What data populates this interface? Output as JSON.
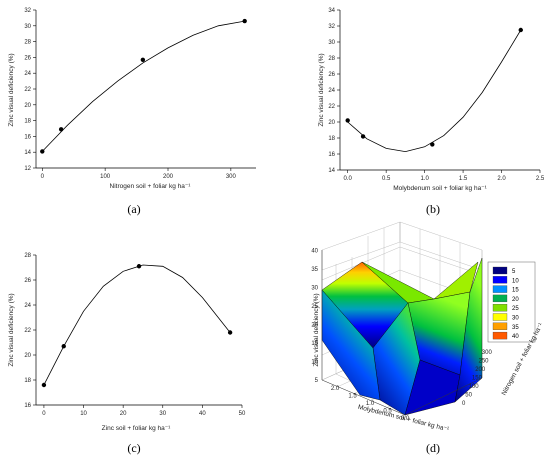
{
  "chart_data": [
    {
      "id": "a",
      "type": "scatter",
      "caption": "(a)",
      "xlabel": "Nitrogen soil + foliar kg ha⁻¹",
      "ylabel": "Zinc visual deficiency (%)",
      "xlim": [
        -10,
        340
      ],
      "ylim": [
        12,
        32
      ],
      "xticks": [
        0,
        100,
        200,
        300
      ],
      "yticks": [
        12,
        14,
        16,
        18,
        20,
        22,
        24,
        26,
        28,
        30,
        32
      ],
      "points": [
        {
          "x": 0,
          "y": 14.1
        },
        {
          "x": 30,
          "y": 16.9
        },
        {
          "x": 160,
          "y": 25.7
        },
        {
          "x": 322,
          "y": 30.6
        }
      ],
      "fit_curve": [
        [
          0,
          14.1
        ],
        [
          40,
          17.4
        ],
        [
          80,
          20.4
        ],
        [
          120,
          23.0
        ],
        [
          160,
          25.3
        ],
        [
          200,
          27.2
        ],
        [
          240,
          28.8
        ],
        [
          280,
          30.0
        ],
        [
          322,
          30.6
        ]
      ]
    },
    {
      "id": "b",
      "type": "scatter",
      "caption": "(b)",
      "xlabel": "Molybdenum  soil + foliar kg ha⁻¹",
      "ylabel": "Zinc visual deficiency (%)",
      "xlim": [
        -0.1,
        2.5
      ],
      "ylim": [
        14,
        34
      ],
      "xticks": [
        0.0,
        0.5,
        1.0,
        1.5,
        2.0,
        2.5
      ],
      "yticks": [
        14,
        16,
        18,
        20,
        22,
        24,
        26,
        28,
        30,
        32,
        34
      ],
      "points": [
        {
          "x": 0.0,
          "y": 20.2
        },
        {
          "x": 0.2,
          "y": 18.2
        },
        {
          "x": 1.1,
          "y": 17.2
        },
        {
          "x": 2.25,
          "y": 31.5
        }
      ],
      "fit_curve": [
        [
          0,
          20.0
        ],
        [
          0.25,
          17.9
        ],
        [
          0.5,
          16.7
        ],
        [
          0.75,
          16.3
        ],
        [
          1.0,
          16.9
        ],
        [
          1.25,
          18.3
        ],
        [
          1.5,
          20.6
        ],
        [
          1.75,
          23.7
        ],
        [
          2.0,
          27.5
        ],
        [
          2.25,
          31.5
        ]
      ]
    },
    {
      "id": "c",
      "type": "scatter",
      "caption": "(c)",
      "xlabel": "Zinc  soil + foliar kg ha⁻¹",
      "ylabel": "Zinc visual deficiency (%)",
      "xlim": [
        -2,
        50
      ],
      "ylim": [
        16,
        28
      ],
      "xticks": [
        0,
        10,
        20,
        30,
        40,
        50
      ],
      "yticks": [
        16,
        18,
        20,
        22,
        24,
        26,
        28
      ],
      "points": [
        {
          "x": 0,
          "y": 17.6
        },
        {
          "x": 5,
          "y": 20.7
        },
        {
          "x": 24,
          "y": 27.1
        },
        {
          "x": 47,
          "y": 21.8
        }
      ],
      "fit_curve": [
        [
          0,
          17.6
        ],
        [
          5,
          20.7
        ],
        [
          10,
          23.5
        ],
        [
          15,
          25.5
        ],
        [
          20,
          26.7
        ],
        [
          25,
          27.2
        ],
        [
          30,
          27.1
        ],
        [
          35,
          26.2
        ],
        [
          40,
          24.6
        ],
        [
          47,
          21.8
        ]
      ]
    },
    {
      "id": "d",
      "type": "surface",
      "caption": "(d)",
      "xlabel": "Molybdenum  soil + foliar kg ha⁻¹",
      "ylabel": "Nitrogen soil + foliar kg ha⁻¹",
      "zlabel": "Zinc visual deficiency (%)",
      "xticks": [
        2.0,
        1.5,
        1.0,
        0.5,
        0.0
      ],
      "yticks": [
        0,
        50,
        100,
        150,
        200,
        250,
        300
      ],
      "zticks": [
        5,
        10,
        15,
        20,
        25,
        30,
        35,
        40
      ],
      "legend": {
        "placement": "top-right",
        "entries": [
          {
            "label": "5",
            "color": "#000080"
          },
          {
            "label": "10",
            "color": "#0000ff"
          },
          {
            "label": "15",
            "color": "#0090ff"
          },
          {
            "label": "20",
            "color": "#00b050"
          },
          {
            "label": "25",
            "color": "#80e000"
          },
          {
            "label": "30",
            "color": "#ffff00"
          },
          {
            "label": "35",
            "color": "#ffa000"
          },
          {
            "label": "40",
            "color": "#ff5a00"
          }
        ]
      }
    }
  ]
}
